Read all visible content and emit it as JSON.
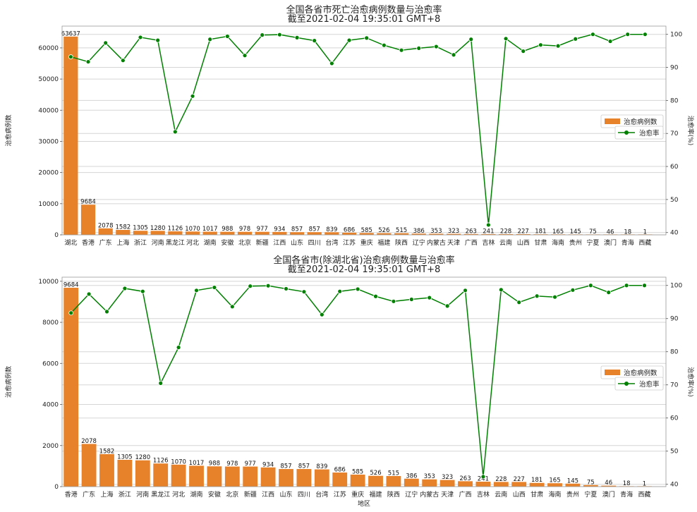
{
  "chart_data": [
    {
      "type": "bar",
      "title": "全国各省市死亡治愈病例数量与治愈率",
      "subtitle": "截至2021-02-04 19:35:01 GMT+8",
      "xlabel": "",
      "ylabel": "治愈病例数",
      "y2label": "治愈率(%)",
      "ylim": [
        0,
        67000
      ],
      "y2lim": [
        39.3,
        102.5
      ],
      "yticks": [
        0,
        10000,
        20000,
        30000,
        40000,
        50000,
        60000
      ],
      "y2ticks": [
        40,
        50,
        60,
        70,
        80,
        90,
        100
      ],
      "legend_position": "right",
      "categories": [
        "湖北",
        "香港",
        "广东",
        "上海",
        "浙江",
        "河南",
        "黑龙江",
        "河北",
        "湖南",
        "安徽",
        "北京",
        "新疆",
        "江西",
        "山东",
        "四川",
        "台湾",
        "江苏",
        "重庆",
        "福建",
        "陕西",
        "辽宁",
        "内蒙古",
        "天津",
        "广西",
        "吉林",
        "云南",
        "山西",
        "甘肃",
        "海南",
        "贵州",
        "宁夏",
        "澳门",
        "青海",
        "西藏"
      ],
      "series": [
        {
          "name": "治愈病例数",
          "type": "bar",
          "color": "#e8822a",
          "values": [
            63637,
            9684,
            2078,
            1582,
            1305,
            1280,
            1126,
            1070,
            1017,
            988,
            978,
            977,
            934,
            857,
            857,
            839,
            686,
            585,
            526,
            515,
            386,
            353,
            323,
            263,
            241,
            228,
            227,
            181,
            165,
            145,
            75,
            46,
            18,
            1
          ]
        },
        {
          "name": "治愈率",
          "type": "line",
          "color": "#008000",
          "values": [
            93.2,
            91.7,
            97.4,
            92.1,
            99.1,
            98.2,
            70.5,
            81.3,
            98.5,
            99.4,
            93.6,
            99.8,
            99.9,
            99.0,
            98.1,
            91.2,
            98.2,
            98.9,
            96.7,
            95.2,
            95.8,
            96.3,
            93.8,
            98.5,
            42.3,
            98.7,
            94.9,
            96.8,
            96.5,
            98.6,
            100.0,
            97.9,
            100.0,
            100.0
          ]
        }
      ]
    },
    {
      "type": "bar",
      "title": "全国各省市(除湖北省)治愈病例数量与治愈率",
      "subtitle": "截至2021-02-04 19:35:01 GMT+8",
      "xlabel": "地区",
      "ylabel": "治愈病例数",
      "y2label": "治愈率(%)",
      "ylim": [
        0,
        10200
      ],
      "y2lim": [
        39.3,
        102.5
      ],
      "yticks": [
        0,
        2000,
        4000,
        6000,
        8000,
        10000
      ],
      "y2ticks": [
        40,
        50,
        60,
        70,
        80,
        90,
        100
      ],
      "legend_position": "right",
      "categories": [
        "香港",
        "广东",
        "上海",
        "浙江",
        "河南",
        "黑龙江",
        "河北",
        "湖南",
        "安徽",
        "北京",
        "新疆",
        "江西",
        "山东",
        "四川",
        "台湾",
        "江苏",
        "重庆",
        "福建",
        "陕西",
        "辽宁",
        "内蒙古",
        "天津",
        "广西",
        "吉林",
        "云南",
        "山西",
        "甘肃",
        "海南",
        "贵州",
        "宁夏",
        "澳门",
        "青海",
        "西藏"
      ],
      "series": [
        {
          "name": "治愈病例数",
          "type": "bar",
          "color": "#e8822a",
          "values": [
            9684,
            2078,
            1582,
            1305,
            1280,
            1126,
            1070,
            1017,
            988,
            978,
            977,
            934,
            857,
            857,
            839,
            686,
            585,
            526,
            515,
            386,
            353,
            323,
            263,
            241,
            228,
            227,
            181,
            165,
            145,
            75,
            46,
            18,
            1
          ]
        },
        {
          "name": "治愈率",
          "type": "line",
          "color": "#008000",
          "values": [
            91.7,
            97.4,
            92.1,
            99.1,
            98.2,
            70.5,
            81.3,
            98.5,
            99.4,
            93.6,
            99.8,
            99.9,
            99.0,
            98.1,
            91.2,
            98.2,
            98.9,
            96.7,
            95.2,
            95.8,
            96.3,
            93.8,
            98.5,
            42.3,
            98.7,
            94.9,
            96.8,
            96.5,
            98.6,
            100.0,
            97.9,
            100.0,
            100.0
          ]
        }
      ]
    }
  ]
}
